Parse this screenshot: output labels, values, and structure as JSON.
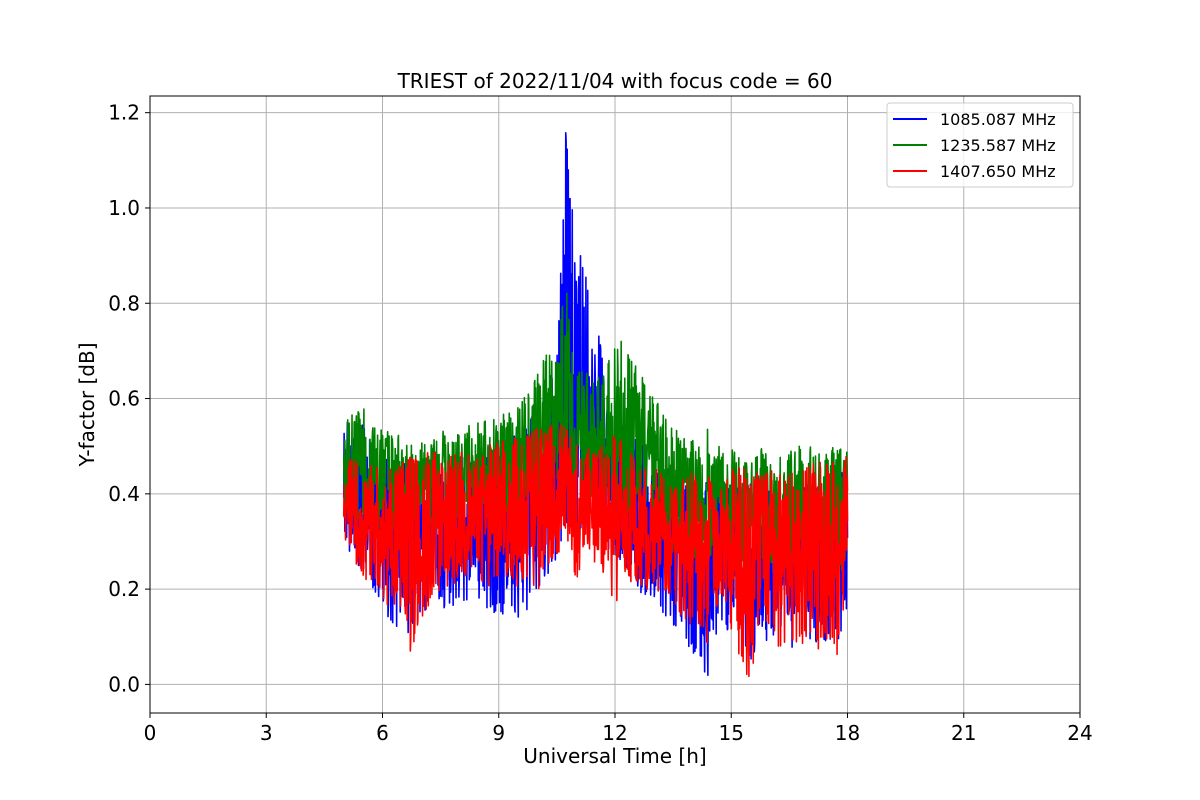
{
  "chart_data": {
    "type": "line",
    "title": "TRIEST of 2022/11/04 with focus code = 60",
    "xlabel": "Universal Time [h]",
    "ylabel": "Y-factor [dB]",
    "xlim": [
      0,
      24
    ],
    "ylim": [
      -0.06,
      1.235
    ],
    "xticks": [
      "0",
      "3",
      "6",
      "9",
      "12",
      "15",
      "18",
      "21",
      "24"
    ],
    "yticks": [
      "0.0",
      "0.2",
      "0.4",
      "0.6",
      "0.8",
      "1.0",
      "1.2"
    ],
    "grid": true,
    "legend_position": "top-right",
    "series": [
      {
        "name": "1085.087 MHz",
        "color": "#0000ff",
        "x": [
          5.0,
          5.25,
          5.5,
          5.75,
          6.0,
          6.25,
          6.5,
          6.75,
          7.0,
          7.25,
          7.5,
          7.75,
          8.0,
          8.25,
          8.5,
          8.75,
          9.0,
          9.25,
          9.5,
          9.75,
          10.0,
          10.25,
          10.5,
          10.65,
          10.75,
          10.85,
          11.0,
          11.25,
          11.5,
          11.75,
          12.0,
          12.25,
          12.5,
          12.75,
          13.0,
          13.25,
          13.5,
          13.75,
          14.0,
          14.25,
          14.4,
          14.5,
          14.75,
          15.0,
          15.25,
          15.5,
          15.75,
          16.0,
          16.25,
          16.5,
          16.75,
          17.0,
          17.25,
          17.5,
          17.75,
          18.0
        ],
        "y_max": [
          0.56,
          0.57,
          0.55,
          0.52,
          0.5,
          0.48,
          0.47,
          0.46,
          0.46,
          0.47,
          0.46,
          0.47,
          0.48,
          0.48,
          0.49,
          0.5,
          0.5,
          0.51,
          0.53,
          0.55,
          0.58,
          0.62,
          0.7,
          1.12,
          1.17,
          1.02,
          0.96,
          0.86,
          0.78,
          0.66,
          0.6,
          0.56,
          0.54,
          0.5,
          0.49,
          0.45,
          0.46,
          0.43,
          0.42,
          0.4,
          0.44,
          0.4,
          0.42,
          0.42,
          0.44,
          0.42,
          0.44,
          0.42,
          0.42,
          0.43,
          0.44,
          0.44,
          0.43,
          0.44,
          0.45,
          0.47
        ],
        "y_min": [
          0.3,
          0.25,
          0.22,
          0.2,
          0.15,
          0.13,
          0.1,
          0.11,
          0.14,
          0.18,
          0.16,
          0.15,
          0.17,
          0.18,
          0.16,
          0.15,
          0.15,
          0.14,
          0.13,
          0.16,
          0.2,
          0.22,
          0.26,
          0.3,
          0.34,
          0.33,
          0.32,
          0.31,
          0.3,
          0.28,
          0.27,
          0.25,
          0.21,
          0.18,
          0.16,
          0.14,
          0.12,
          0.08,
          0.06,
          0.04,
          0.0,
          0.09,
          0.12,
          0.1,
          0.08,
          0.05,
          0.07,
          0.1,
          0.08,
          0.07,
          0.09,
          0.08,
          0.06,
          0.08,
          0.06,
          0.15
        ]
      },
      {
        "name": "1235.587 MHz",
        "color": "#008000",
        "x": [
          5.0,
          5.25,
          5.5,
          5.75,
          6.0,
          6.25,
          6.5,
          6.75,
          7.0,
          7.25,
          7.5,
          7.75,
          8.0,
          8.25,
          8.5,
          8.75,
          9.0,
          9.25,
          9.5,
          9.75,
          10.0,
          10.25,
          10.5,
          10.65,
          10.75,
          10.85,
          11.0,
          11.25,
          11.5,
          11.75,
          12.0,
          12.25,
          12.5,
          12.75,
          13.0,
          13.25,
          13.5,
          13.75,
          14.0,
          14.25,
          14.4,
          14.5,
          14.75,
          15.0,
          15.25,
          15.5,
          15.75,
          16.0,
          16.25,
          16.5,
          16.75,
          17.0,
          17.25,
          17.5,
          17.75,
          18.0
        ],
        "y_max": [
          0.55,
          0.57,
          0.6,
          0.58,
          0.55,
          0.52,
          0.53,
          0.51,
          0.51,
          0.52,
          0.53,
          0.54,
          0.53,
          0.55,
          0.55,
          0.57,
          0.56,
          0.58,
          0.6,
          0.62,
          0.65,
          0.7,
          0.68,
          0.82,
          0.86,
          0.72,
          0.66,
          0.66,
          0.65,
          0.68,
          0.72,
          0.72,
          0.68,
          0.64,
          0.6,
          0.58,
          0.54,
          0.52,
          0.52,
          0.5,
          0.54,
          0.5,
          0.5,
          0.5,
          0.49,
          0.48,
          0.5,
          0.49,
          0.48,
          0.49,
          0.5,
          0.5,
          0.49,
          0.5,
          0.5,
          0.49
        ],
        "y_min": [
          0.36,
          0.34,
          0.33,
          0.33,
          0.32,
          0.32,
          0.3,
          0.31,
          0.32,
          0.32,
          0.33,
          0.33,
          0.33,
          0.33,
          0.34,
          0.34,
          0.35,
          0.36,
          0.36,
          0.37,
          0.38,
          0.38,
          0.38,
          0.39,
          0.4,
          0.4,
          0.4,
          0.39,
          0.38,
          0.37,
          0.36,
          0.35,
          0.34,
          0.33,
          0.32,
          0.3,
          0.28,
          0.27,
          0.26,
          0.25,
          0.24,
          0.25,
          0.25,
          0.26,
          0.26,
          0.25,
          0.26,
          0.25,
          0.24,
          0.25,
          0.25,
          0.24,
          0.24,
          0.23,
          0.23,
          0.25
        ]
      },
      {
        "name": "1407.650 MHz",
        "color": "#ff0000",
        "x": [
          5.0,
          5.25,
          5.5,
          5.75,
          6.0,
          6.25,
          6.5,
          6.75,
          7.0,
          7.25,
          7.5,
          7.75,
          8.0,
          8.25,
          8.5,
          8.75,
          9.0,
          9.25,
          9.5,
          9.75,
          10.0,
          10.25,
          10.5,
          10.65,
          10.75,
          10.85,
          11.0,
          11.25,
          11.5,
          11.75,
          12.0,
          12.25,
          12.5,
          12.75,
          13.0,
          13.25,
          13.5,
          13.75,
          14.0,
          14.25,
          14.4,
          14.5,
          14.75,
          15.0,
          15.25,
          15.5,
          15.75,
          16.0,
          16.25,
          16.5,
          16.75,
          17.0,
          17.25,
          17.5,
          17.75,
          18.0
        ],
        "y_max": [
          0.47,
          0.48,
          0.47,
          0.46,
          0.45,
          0.46,
          0.47,
          0.48,
          0.48,
          0.49,
          0.49,
          0.5,
          0.49,
          0.5,
          0.5,
          0.51,
          0.51,
          0.52,
          0.52,
          0.53,
          0.54,
          0.55,
          0.56,
          0.55,
          0.54,
          0.53,
          0.52,
          0.51,
          0.5,
          0.52,
          0.53,
          0.5,
          0.49,
          0.48,
          0.46,
          0.45,
          0.44,
          0.43,
          0.46,
          0.42,
          0.44,
          0.43,
          0.45,
          0.45,
          0.46,
          0.44,
          0.45,
          0.46,
          0.45,
          0.46,
          0.46,
          0.46,
          0.47,
          0.47,
          0.47,
          0.48
        ],
        "y_min": [
          0.3,
          0.26,
          0.2,
          0.22,
          0.17,
          0.16,
          0.11,
          0.06,
          0.13,
          0.17,
          0.2,
          0.19,
          0.22,
          0.23,
          0.22,
          0.2,
          0.21,
          0.22,
          0.2,
          0.22,
          0.18,
          0.24,
          0.27,
          0.28,
          0.3,
          0.28,
          0.21,
          0.26,
          0.25,
          0.23,
          0.16,
          0.22,
          0.21,
          0.19,
          0.2,
          0.19,
          0.15,
          0.14,
          0.12,
          0.1,
          0.08,
          0.18,
          0.14,
          0.1,
          0.05,
          0.0,
          0.15,
          0.12,
          0.06,
          0.1,
          0.08,
          0.09,
          0.07,
          0.1,
          0.06,
          0.22
        ]
      }
    ]
  }
}
